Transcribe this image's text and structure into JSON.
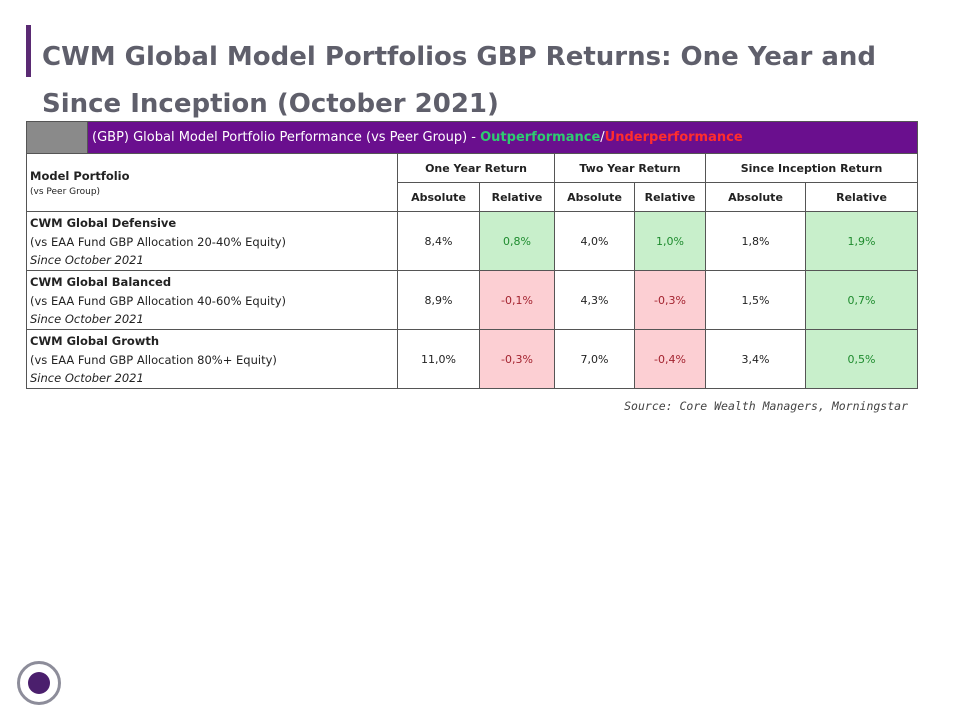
{
  "title": "CWM Global Model Portfolios GBP Returns: One Year and Since Inception (October 2021)",
  "table": {
    "banner_main": "(GBP) Global Model Portfolio Performance (vs Peer Group) - ",
    "banner_out": "Outperformance",
    "banner_sep": "/",
    "banner_under": "Underperformance",
    "model_header": "Model Portfolio",
    "model_subheader": "(vs Peer Group)",
    "groups": [
      "One Year Return",
      "Two Year Return",
      "Since Inception Return"
    ],
    "subheaders": [
      "Absolute",
      "Relative",
      "Absolute",
      "Relative",
      "Absolute",
      "Relative"
    ],
    "rows": [
      {
        "name": "CWM Global Defensive",
        "peer": "(vs EAA Fund GBP Allocation 20-40% Equity)",
        "since": "Since October 2021",
        "values": [
          "8,4%",
          "0,8%",
          "4,0%",
          "1,0%",
          "1,8%",
          "1,9%"
        ],
        "status": [
          "",
          "pos",
          "",
          "pos",
          "",
          "pos"
        ]
      },
      {
        "name": "CWM Global Balanced",
        "peer": "(vs EAA Fund GBP Allocation 40-60% Equity)",
        "since": "Since October 2021",
        "values": [
          "8,9%",
          "-0,1%",
          "4,3%",
          "-0,3%",
          "1,5%",
          "0,7%"
        ],
        "status": [
          "",
          "neg",
          "",
          "neg",
          "",
          "pos"
        ]
      },
      {
        "name": "CWM Global Growth",
        "peer": "(vs EAA Fund GBP Allocation 80%+ Equity)",
        "since": "Since October 2021",
        "values": [
          "11,0%",
          "-0,3%",
          "7,0%",
          "-0,4%",
          "3,4%",
          "0,5%"
        ],
        "status": [
          "",
          "neg",
          "",
          "neg",
          "",
          "pos"
        ]
      }
    ]
  },
  "source": "Source: Core Wealth Managers, Morningstar",
  "colors": {
    "accent": "#6a0f8e",
    "outperformance": "#c8efcb",
    "underperformance": "#fccfd3"
  }
}
